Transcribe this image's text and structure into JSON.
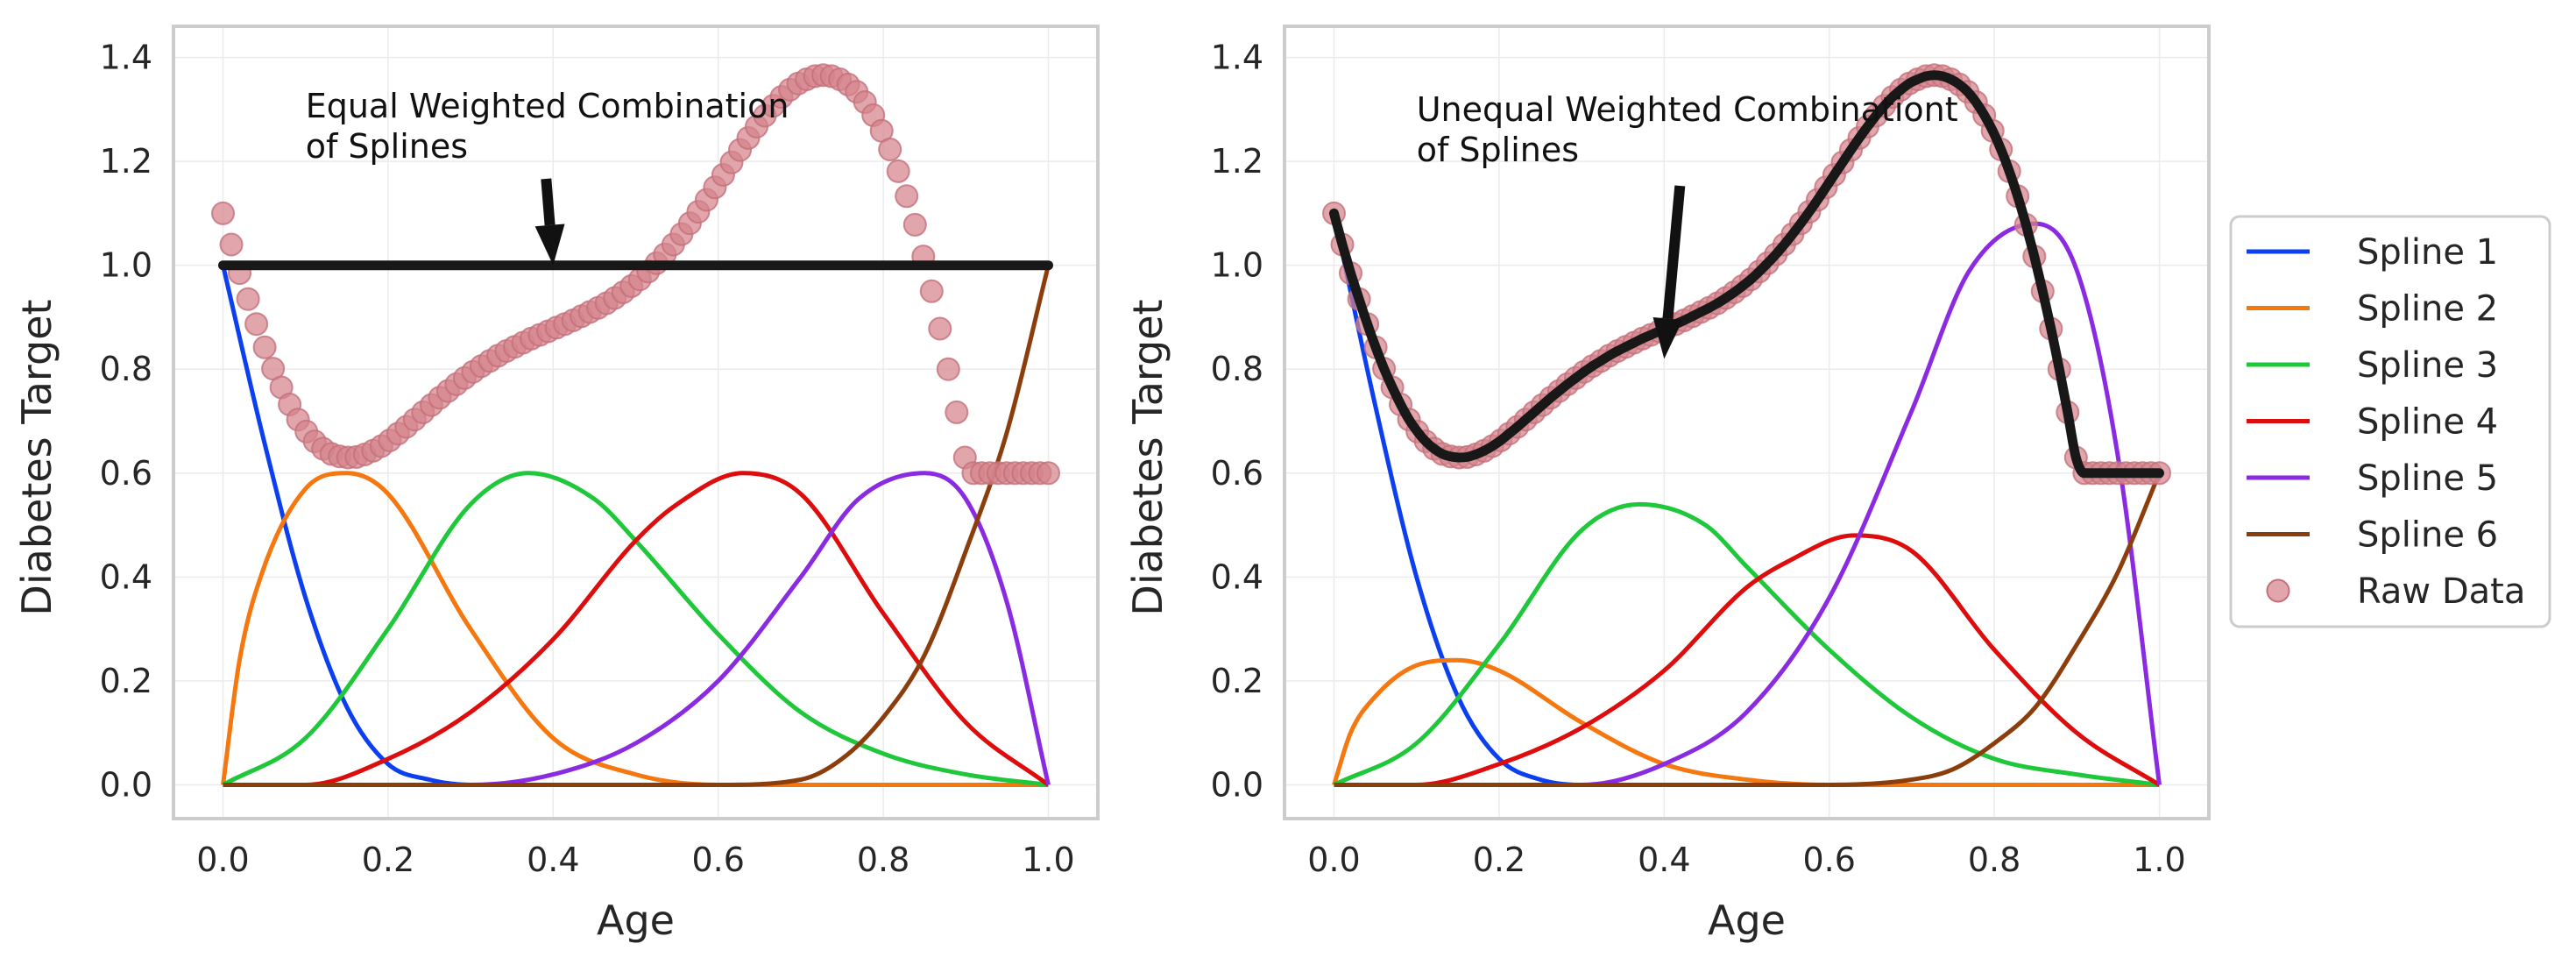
{
  "colors": {
    "spline_1": "#0b3ff0",
    "spline_2": "#f5770f",
    "spline_3": "#1fc83a",
    "spline_4": "#de0d0d",
    "spline_5": "#8a2be2",
    "spline_6": "#8b3e0c",
    "raw_data": "#d4838c",
    "combination": "#181818",
    "grid": "#ebebeb",
    "frame": "#cccccc"
  },
  "legend": {
    "placement": "right",
    "items": [
      "Spline 1",
      "Spline 2",
      "Spline 3",
      "Spline 4",
      "Spline 5",
      "Spline 6",
      "Raw Data"
    ]
  },
  "chart_data": [
    {
      "type": "line",
      "xlabel": "Age",
      "ylabel": "Diabetes Target",
      "xlim": [
        -0.06,
        1.06
      ],
      "ylim": [
        -0.065,
        1.46
      ],
      "xticks": [
        "0.0",
        "0.2",
        "0.4",
        "0.6",
        "0.8",
        "1.0"
      ],
      "yticks": [
        "0.0",
        "0.2",
        "0.4",
        "0.6",
        "0.8",
        "1.0",
        "1.2",
        "1.4"
      ],
      "grid": true,
      "annotation": {
        "line1": "Equal Weighted Combination",
        "line2": "of Splines",
        "arrow_target": [
          0.4,
          1.0
        ]
      },
      "spline_weights": [
        1.0,
        1.0,
        1.0,
        1.0,
        1.0,
        1.0
      ],
      "series": [
        {
          "name": "Spline 1",
          "x": [
            0.0,
            0.05,
            0.1,
            0.15,
            0.2,
            0.25,
            0.3,
            0.35,
            1.0
          ],
          "y": [
            1.0,
            0.66,
            0.36,
            0.15,
            0.04,
            0.01,
            0.0,
            0.0,
            0.0
          ]
        },
        {
          "name": "Spline 2",
          "x": [
            0.0,
            0.02,
            0.05,
            0.1,
            0.15,
            0.2,
            0.3,
            0.4,
            0.5,
            0.6,
            0.7,
            1.0
          ],
          "y": [
            0.0,
            0.24,
            0.42,
            0.57,
            0.6,
            0.56,
            0.3,
            0.09,
            0.02,
            0.0,
            0.0,
            0.0
          ]
        },
        {
          "name": "Spline 3",
          "x": [
            0.0,
            0.1,
            0.2,
            0.3,
            0.37,
            0.45,
            0.5,
            0.6,
            0.7,
            0.8,
            0.9,
            1.0
          ],
          "y": [
            0.0,
            0.09,
            0.3,
            0.54,
            0.6,
            0.55,
            0.47,
            0.29,
            0.14,
            0.06,
            0.02,
            0.0
          ]
        },
        {
          "name": "Spline 4",
          "x": [
            0.0,
            0.1,
            0.2,
            0.3,
            0.4,
            0.5,
            0.55,
            0.63,
            0.7,
            0.8,
            0.9,
            1.0
          ],
          "y": [
            0.0,
            0.0,
            0.05,
            0.14,
            0.28,
            0.47,
            0.54,
            0.6,
            0.56,
            0.33,
            0.12,
            0.0
          ]
        },
        {
          "name": "Spline 5",
          "x": [
            0.0,
            0.3,
            0.4,
            0.5,
            0.6,
            0.7,
            0.77,
            0.85,
            0.9,
            0.95,
            1.0
          ],
          "y": [
            0.0,
            0.0,
            0.02,
            0.08,
            0.2,
            0.4,
            0.55,
            0.6,
            0.55,
            0.35,
            0.0
          ]
        },
        {
          "name": "Spline 6",
          "x": [
            0.0,
            0.6,
            0.7,
            0.75,
            0.8,
            0.85,
            0.9,
            0.95,
            1.0
          ],
          "y": [
            0.0,
            0.0,
            0.01,
            0.05,
            0.13,
            0.25,
            0.45,
            0.68,
            1.0
          ]
        }
      ],
      "combination_y": [
        1.0,
        1.0
      ]
    },
    {
      "type": "line",
      "xlabel": "Age",
      "ylabel": "Diabetes Target",
      "xlim": [
        -0.06,
        1.06
      ],
      "ylim": [
        -0.065,
        1.46
      ],
      "xticks": [
        "0.0",
        "0.2",
        "0.4",
        "0.6",
        "0.8",
        "1.0"
      ],
      "yticks": [
        "0.0",
        "0.2",
        "0.4",
        "0.6",
        "0.8",
        "1.0",
        "1.2",
        "1.4"
      ],
      "grid": true,
      "annotation": {
        "line1": "Unequal Weighted Combinationt",
        "line2": "of Splines",
        "arrow_target": [
          0.4,
          0.82
        ]
      },
      "spline_weights": [
        1.1,
        0.4,
        0.9,
        0.8,
        1.8,
        0.6
      ],
      "series": [
        {
          "name": "Spline 1",
          "x": [
            0.0,
            0.05,
            0.1,
            0.15,
            0.2,
            0.25,
            0.3,
            0.35,
            1.0
          ],
          "y": [
            1.1,
            0.73,
            0.4,
            0.17,
            0.05,
            0.01,
            0.0,
            0.0,
            0.0
          ]
        },
        {
          "name": "Spline 2",
          "x": [
            0.0,
            0.02,
            0.05,
            0.1,
            0.15,
            0.2,
            0.3,
            0.4,
            0.5,
            0.6,
            0.7,
            1.0
          ],
          "y": [
            0.0,
            0.1,
            0.17,
            0.23,
            0.24,
            0.22,
            0.12,
            0.04,
            0.01,
            0.0,
            0.0,
            0.0
          ]
        },
        {
          "name": "Spline 3",
          "x": [
            0.0,
            0.1,
            0.2,
            0.3,
            0.37,
            0.45,
            0.5,
            0.6,
            0.7,
            0.8,
            0.9,
            1.0
          ],
          "y": [
            0.0,
            0.08,
            0.27,
            0.49,
            0.54,
            0.5,
            0.42,
            0.26,
            0.13,
            0.05,
            0.02,
            0.0
          ]
        },
        {
          "name": "Spline 4",
          "x": [
            0.0,
            0.1,
            0.2,
            0.3,
            0.4,
            0.5,
            0.55,
            0.63,
            0.7,
            0.8,
            0.9,
            1.0
          ],
          "y": [
            0.0,
            0.0,
            0.04,
            0.11,
            0.22,
            0.38,
            0.43,
            0.48,
            0.45,
            0.26,
            0.1,
            0.0
          ]
        },
        {
          "name": "Spline 5",
          "x": [
            0.0,
            0.3,
            0.4,
            0.5,
            0.6,
            0.7,
            0.77,
            0.85,
            0.9,
            0.95,
            1.0
          ],
          "y": [
            0.0,
            0.0,
            0.04,
            0.14,
            0.36,
            0.72,
            0.99,
            1.08,
            0.99,
            0.63,
            0.0
          ]
        },
        {
          "name": "Spline 6",
          "x": [
            0.0,
            0.6,
            0.7,
            0.75,
            0.8,
            0.85,
            0.9,
            0.95,
            1.0
          ],
          "y": [
            0.0,
            0.0,
            0.01,
            0.03,
            0.08,
            0.15,
            0.27,
            0.41,
            0.6
          ]
        }
      ],
      "combination_y": []
    }
  ],
  "raw_data": {
    "name": "Raw Data",
    "x": [
      0.0,
      0.0101,
      0.0202,
      0.0303,
      0.0404,
      0.0505,
      0.0606,
      0.0707,
      0.0808,
      0.0909,
      0.101,
      0.1111,
      0.1212,
      0.1313,
      0.1414,
      0.1515,
      0.1616,
      0.1717,
      0.1818,
      0.1919,
      0.202,
      0.2121,
      0.2222,
      0.2323,
      0.2424,
      0.2525,
      0.2626,
      0.2727,
      0.2828,
      0.2929,
      0.303,
      0.3131,
      0.3232,
      0.3333,
      0.3434,
      0.3535,
      0.3636,
      0.3737,
      0.3838,
      0.3939,
      0.404,
      0.4141,
      0.4242,
      0.4343,
      0.4444,
      0.4545,
      0.4646,
      0.4747,
      0.4848,
      0.4949,
      0.5051,
      0.5152,
      0.5253,
      0.5354,
      0.5455,
      0.5556,
      0.5657,
      0.5758,
      0.5859,
      0.596,
      0.6061,
      0.6162,
      0.6263,
      0.6364,
      0.6465,
      0.6566,
      0.6667,
      0.6768,
      0.6869,
      0.697,
      0.7071,
      0.7172,
      0.7273,
      0.7374,
      0.7475,
      0.7576,
      0.7677,
      0.7778,
      0.7879,
      0.798,
      0.8081,
      0.8182,
      0.8283,
      0.8384,
      0.8485,
      0.8586,
      0.8687,
      0.8788,
      0.8889,
      0.899,
      0.9091,
      0.9192,
      0.9293,
      0.9394,
      0.9495,
      0.9596,
      0.9697,
      0.9798,
      0.9899,
      1.0
    ],
    "y": [
      1.1,
      1.04,
      0.985,
      0.935,
      0.887,
      0.842,
      0.801,
      0.765,
      0.732,
      0.703,
      0.68,
      0.661,
      0.647,
      0.637,
      0.632,
      0.63,
      0.631,
      0.636,
      0.643,
      0.652,
      0.663,
      0.676,
      0.689,
      0.703,
      0.717,
      0.731,
      0.745,
      0.758,
      0.771,
      0.783,
      0.795,
      0.806,
      0.816,
      0.826,
      0.835,
      0.843,
      0.851,
      0.859,
      0.866,
      0.873,
      0.88,
      0.887,
      0.894,
      0.902,
      0.91,
      0.918,
      0.927,
      0.937,
      0.948,
      0.96,
      0.973,
      0.988,
      1.004,
      1.021,
      1.04,
      1.06,
      1.081,
      1.103,
      1.126,
      1.15,
      1.174,
      1.198,
      1.222,
      1.245,
      1.267,
      1.288,
      1.307,
      1.324,
      1.338,
      1.35,
      1.358,
      1.364,
      1.366,
      1.364,
      1.358,
      1.348,
      1.334,
      1.314,
      1.289,
      1.259,
      1.223,
      1.181,
      1.133,
      1.078,
      1.017,
      0.95,
      0.878,
      0.8,
      0.717,
      0.63,
      0.6,
      0.6,
      0.6,
      0.6,
      0.6,
      0.6,
      0.6,
      0.6,
      0.6,
      0.6
    ]
  }
}
